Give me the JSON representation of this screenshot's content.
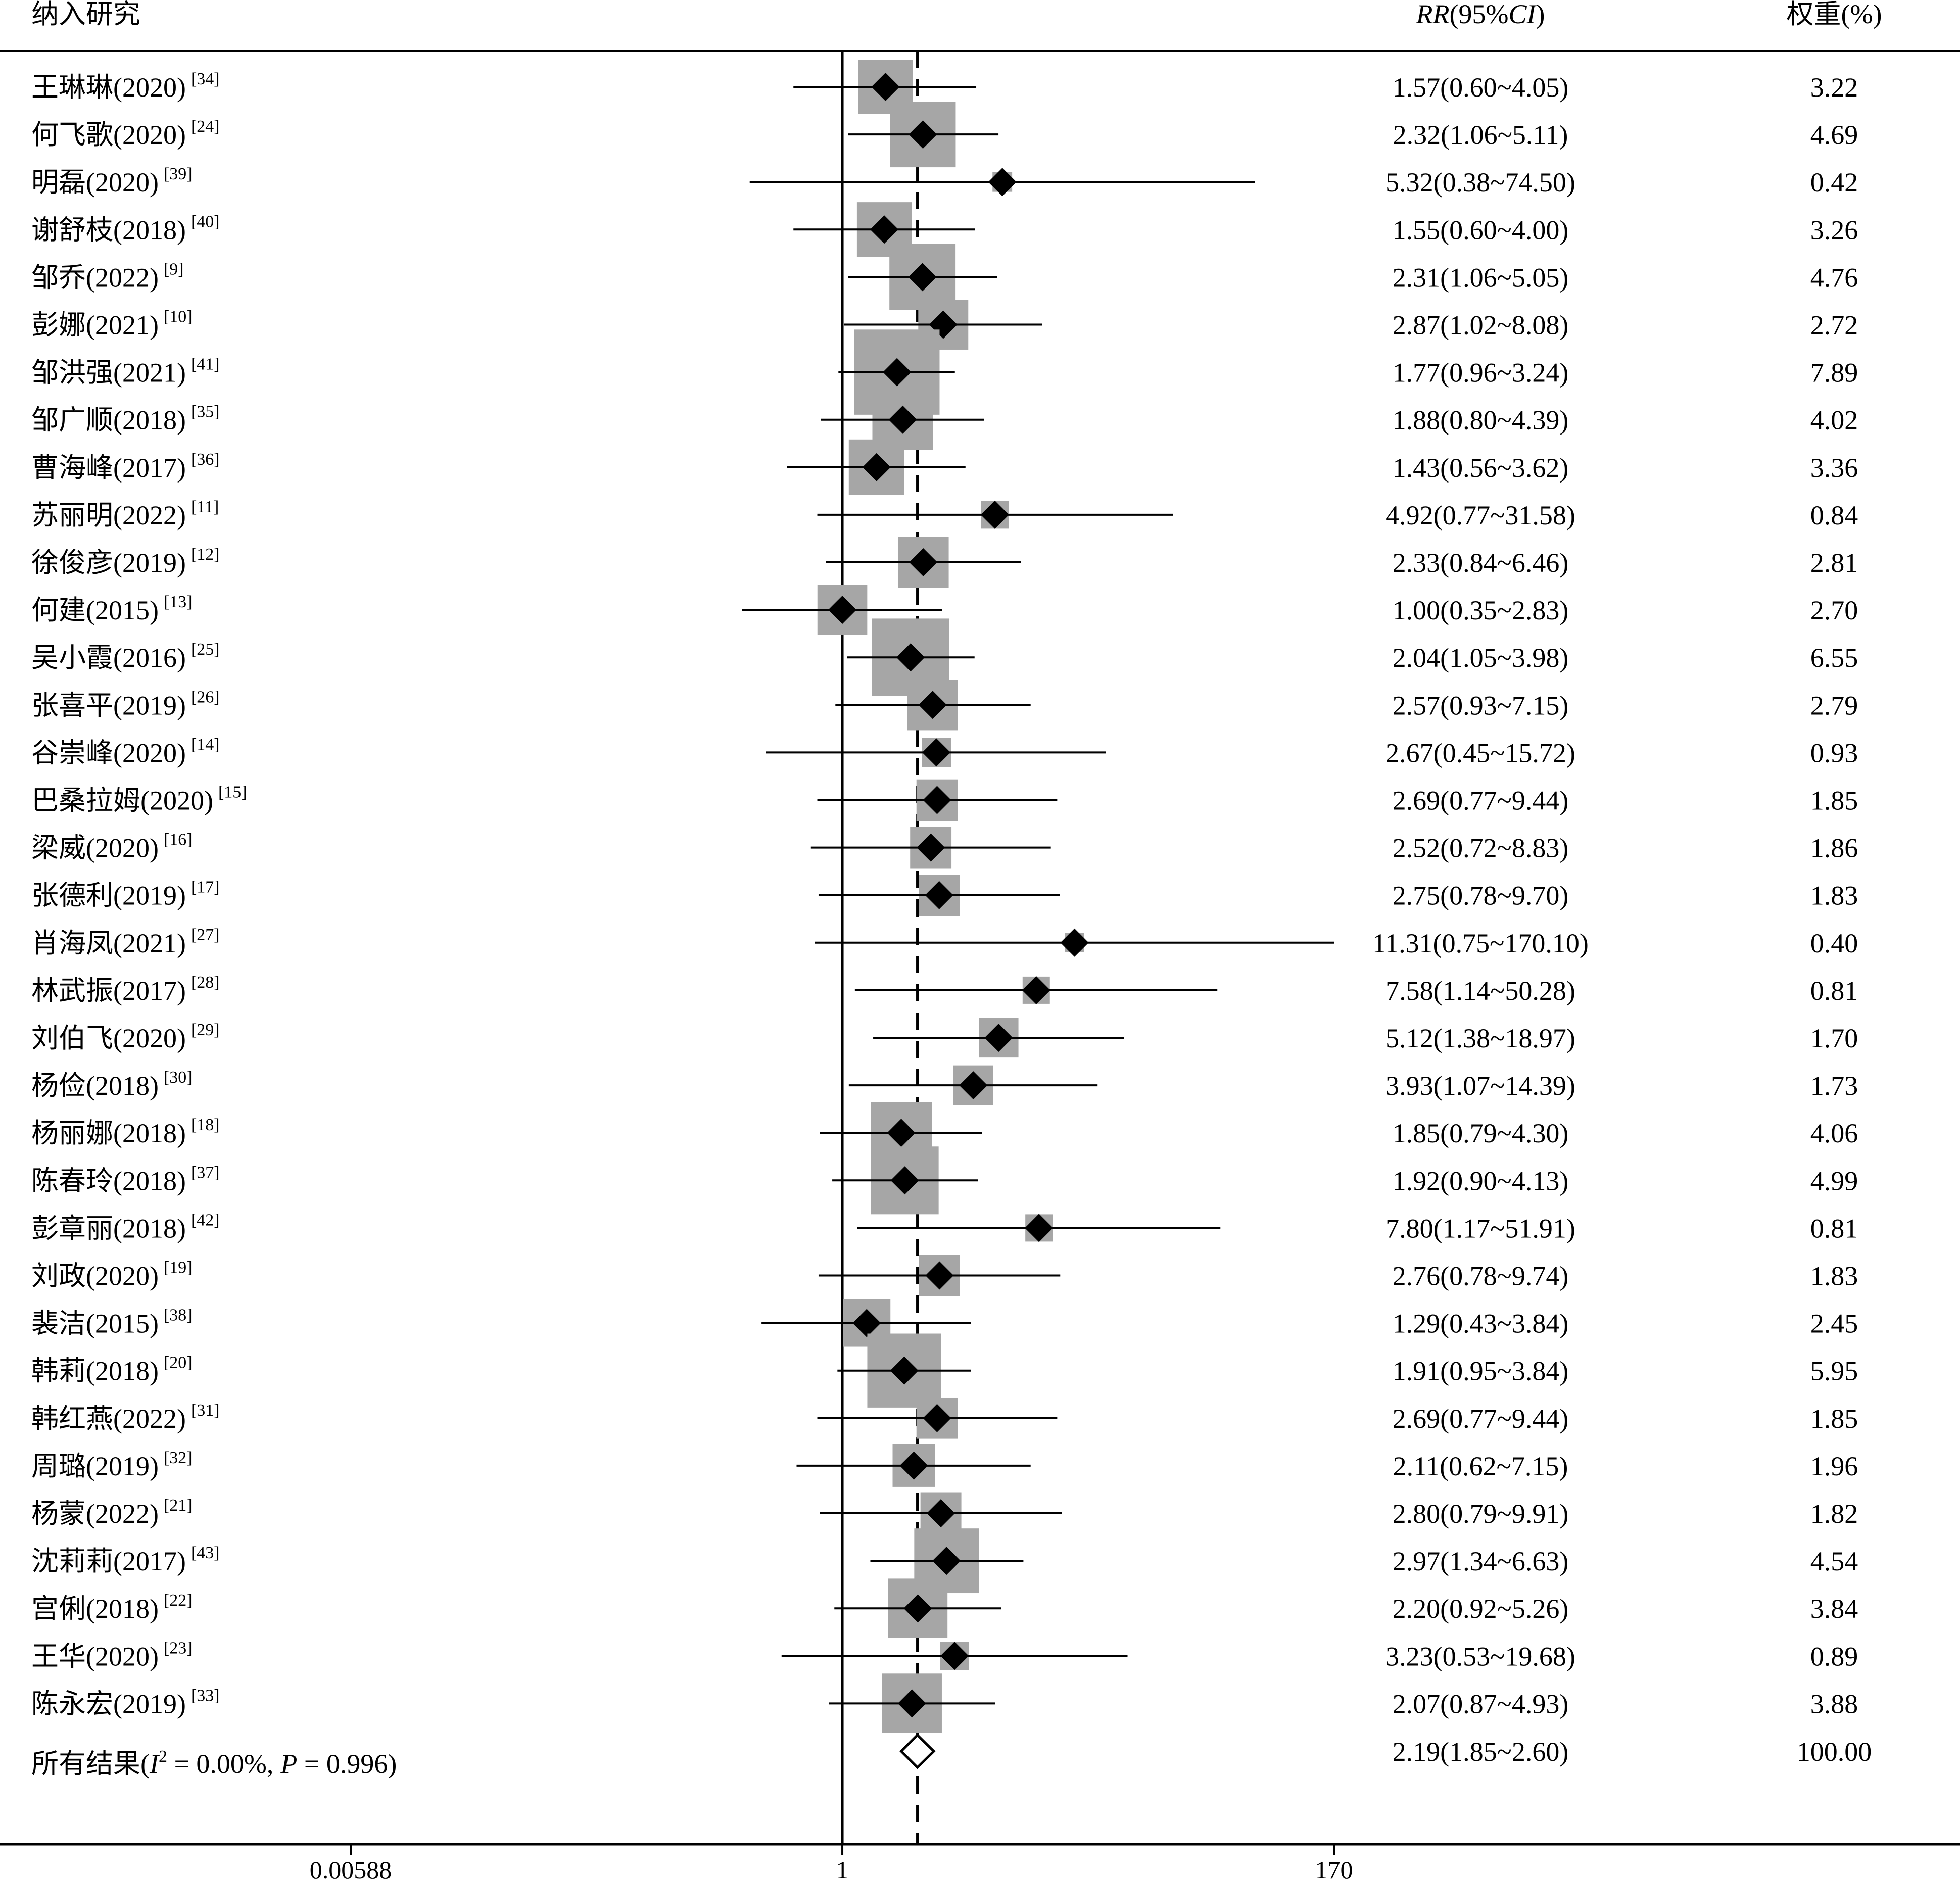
{
  "chart_data": {
    "type": "forest",
    "headers": {
      "study": "纳入研究",
      "effect_italic": "RR",
      "effect_open": "(95%",
      "effect_ci_italic": "CI",
      "effect_close": ")",
      "weight": "权重(%)"
    },
    "x_scale": "log",
    "xlim": [
      0.00588,
      170
    ],
    "x_ticks": [
      "0.00588",
      "1",
      "170"
    ],
    "null_line": 1,
    "pooled_line": 2.19,
    "studies": [
      {
        "name": "王琳琳(2020)",
        "ref": "[34]",
        "rr": 1.57,
        "lo": 0.6,
        "hi": 4.05,
        "ci_text": "1.57(0.60~4.05)",
        "weight": "3.22"
      },
      {
        "name": "何飞歌(2020)",
        "ref": "[24]",
        "rr": 2.32,
        "lo": 1.06,
        "hi": 5.11,
        "ci_text": "2.32(1.06~5.11)",
        "weight": "4.69"
      },
      {
        "name": "明磊(2020)",
        "ref": "[39]",
        "rr": 5.32,
        "lo": 0.38,
        "hi": 74.5,
        "ci_text": "5.32(0.38~74.50)",
        "weight": "0.42"
      },
      {
        "name": "谢舒枝(2018)",
        "ref": "[40]",
        "rr": 1.55,
        "lo": 0.6,
        "hi": 4.0,
        "ci_text": "1.55(0.60~4.00)",
        "weight": "3.26"
      },
      {
        "name": "邹乔(2022)",
        "ref": "[9]",
        "rr": 2.31,
        "lo": 1.06,
        "hi": 5.05,
        "ci_text": "2.31(1.06~5.05)",
        "weight": "4.76"
      },
      {
        "name": "彭娜(2021)",
        "ref": "[10]",
        "rr": 2.87,
        "lo": 1.02,
        "hi": 8.08,
        "ci_text": "2.87(1.02~8.08)",
        "weight": "2.72"
      },
      {
        "name": "邹洪强(2021)",
        "ref": "[41]",
        "rr": 1.77,
        "lo": 0.96,
        "hi": 3.24,
        "ci_text": "1.77(0.96~3.24)",
        "weight": "7.89"
      },
      {
        "name": "邹广顺(2018)",
        "ref": "[35]",
        "rr": 1.88,
        "lo": 0.8,
        "hi": 4.39,
        "ci_text": "1.88(0.80~4.39)",
        "weight": "4.02"
      },
      {
        "name": "曹海峰(2017)",
        "ref": "[36]",
        "rr": 1.43,
        "lo": 0.56,
        "hi": 3.62,
        "ci_text": "1.43(0.56~3.62)",
        "weight": "3.36"
      },
      {
        "name": "苏丽明(2022)",
        "ref": "[11]",
        "rr": 4.92,
        "lo": 0.77,
        "hi": 31.58,
        "ci_text": "4.92(0.77~31.58)",
        "weight": "0.84"
      },
      {
        "name": "徐俊彦(2019)",
        "ref": "[12]",
        "rr": 2.33,
        "lo": 0.84,
        "hi": 6.46,
        "ci_text": "2.33(0.84~6.46)",
        "weight": "2.81"
      },
      {
        "name": "何建(2015)",
        "ref": "[13]",
        "rr": 1.0,
        "lo": 0.35,
        "hi": 2.83,
        "ci_text": "1.00(0.35~2.83)",
        "weight": "2.70"
      },
      {
        "name": "吴小霞(2016)",
        "ref": "[25]",
        "rr": 2.04,
        "lo": 1.05,
        "hi": 3.98,
        "ci_text": "2.04(1.05~3.98)",
        "weight": "6.55"
      },
      {
        "name": "张喜平(2019)",
        "ref": "[26]",
        "rr": 2.57,
        "lo": 0.93,
        "hi": 7.15,
        "ci_text": "2.57(0.93~7.15)",
        "weight": "2.79"
      },
      {
        "name": "谷崇峰(2020)",
        "ref": "[14]",
        "rr": 2.67,
        "lo": 0.45,
        "hi": 15.72,
        "ci_text": "2.67(0.45~15.72)",
        "weight": "0.93"
      },
      {
        "name": "巴桑拉姆(2020)",
        "ref": "[15]",
        "rr": 2.69,
        "lo": 0.77,
        "hi": 9.44,
        "ci_text": "2.69(0.77~9.44)",
        "weight": "1.85"
      },
      {
        "name": "梁威(2020)",
        "ref": "[16]",
        "rr": 2.52,
        "lo": 0.72,
        "hi": 8.83,
        "ci_text": "2.52(0.72~8.83)",
        "weight": "1.86"
      },
      {
        "name": "张德利(2019)",
        "ref": "[17]",
        "rr": 2.75,
        "lo": 0.78,
        "hi": 9.7,
        "ci_text": "2.75(0.78~9.70)",
        "weight": "1.83"
      },
      {
        "name": "肖海凤(2021)",
        "ref": "[27]",
        "rr": 11.31,
        "lo": 0.75,
        "hi": 170.1,
        "ci_text": "11.31(0.75~170.10)",
        "weight": "0.40"
      },
      {
        "name": "林武振(2017)",
        "ref": "[28]",
        "rr": 7.58,
        "lo": 1.14,
        "hi": 50.28,
        "ci_text": "7.58(1.14~50.28)",
        "weight": "0.81"
      },
      {
        "name": "刘伯飞(2020)",
        "ref": "[29]",
        "rr": 5.12,
        "lo": 1.38,
        "hi": 18.97,
        "ci_text": "5.12(1.38~18.97)",
        "weight": "1.70"
      },
      {
        "name": "杨俭(2018)",
        "ref": "[30]",
        "rr": 3.93,
        "lo": 1.07,
        "hi": 14.39,
        "ci_text": "3.93(1.07~14.39)",
        "weight": "1.73"
      },
      {
        "name": "杨丽娜(2018)",
        "ref": "[18]",
        "rr": 1.85,
        "lo": 0.79,
        "hi": 4.3,
        "ci_text": "1.85(0.79~4.30)",
        "weight": "4.06"
      },
      {
        "name": "陈春玲(2018)",
        "ref": "[37]",
        "rr": 1.92,
        "lo": 0.9,
        "hi": 4.13,
        "ci_text": "1.92(0.90~4.13)",
        "weight": "4.99"
      },
      {
        "name": "彭章丽(2018)",
        "ref": "[42]",
        "rr": 7.8,
        "lo": 1.17,
        "hi": 51.91,
        "ci_text": "7.80(1.17~51.91)",
        "weight": "0.81"
      },
      {
        "name": "刘政(2020)",
        "ref": "[19]",
        "rr": 2.76,
        "lo": 0.78,
        "hi": 9.74,
        "ci_text": "2.76(0.78~9.74)",
        "weight": "1.83"
      },
      {
        "name": "裴洁(2015)",
        "ref": "[38]",
        "rr": 1.29,
        "lo": 0.43,
        "hi": 3.84,
        "ci_text": "1.29(0.43~3.84)",
        "weight": "2.45"
      },
      {
        "name": "韩莉(2018)",
        "ref": "[20]",
        "rr": 1.91,
        "lo": 0.95,
        "hi": 3.84,
        "ci_text": "1.91(0.95~3.84)",
        "weight": "5.95"
      },
      {
        "name": "韩红燕(2022)",
        "ref": "[31]",
        "rr": 2.69,
        "lo": 0.77,
        "hi": 9.44,
        "ci_text": "2.69(0.77~9.44)",
        "weight": "1.85"
      },
      {
        "name": "周璐(2019)",
        "ref": "[32]",
        "rr": 2.11,
        "lo": 0.62,
        "hi": 7.15,
        "ci_text": "2.11(0.62~7.15)",
        "weight": "1.96"
      },
      {
        "name": "杨蒙(2022)",
        "ref": "[21]",
        "rr": 2.8,
        "lo": 0.79,
        "hi": 9.91,
        "ci_text": "2.80(0.79~9.91)",
        "weight": "1.82"
      },
      {
        "name": "沈莉莉(2017)",
        "ref": "[43]",
        "rr": 2.97,
        "lo": 1.34,
        "hi": 6.63,
        "ci_text": "2.97(1.34~6.63)",
        "weight": "4.54"
      },
      {
        "name": "宫俐(2018)",
        "ref": "[22]",
        "rr": 2.2,
        "lo": 0.92,
        "hi": 5.26,
        "ci_text": "2.20(0.92~5.26)",
        "weight": "3.84"
      },
      {
        "name": "王华(2020)",
        "ref": "[23]",
        "rr": 3.23,
        "lo": 0.53,
        "hi": 19.68,
        "ci_text": "3.23(0.53~19.68)",
        "weight": "0.89"
      },
      {
        "name": "陈永宏(2019)",
        "ref": "[33]",
        "rr": 2.07,
        "lo": 0.87,
        "hi": 4.93,
        "ci_text": "2.07(0.87~4.93)",
        "weight": "3.88"
      }
    ],
    "overall": {
      "label_prefix": "所有结果(",
      "i2_symbol": "I",
      "i2_exp": "2",
      "i2_text": " = 0.00%,",
      "p_symbol": "P",
      "p_text": " = 0.996)",
      "rr": 2.19,
      "lo": 1.85,
      "hi": 2.6,
      "ci_text": "2.19(1.85~2.60)",
      "weight": "100.00"
    },
    "colors": {
      "box": "#a6a6a6",
      "marker": "#000000",
      "line": "#000000"
    }
  }
}
